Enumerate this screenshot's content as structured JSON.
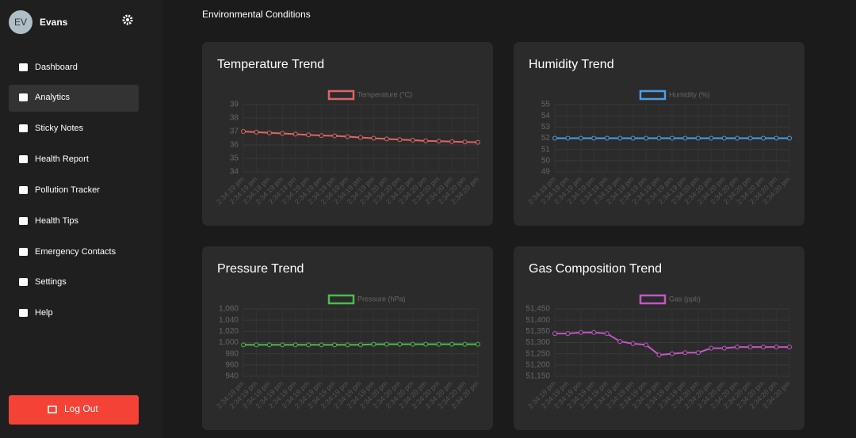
{
  "sidebar": {
    "user": {
      "initials": "EV",
      "name": "Evans"
    },
    "menu": [
      "Dashboard",
      "Analytics",
      "Sticky Notes",
      "Health Report",
      "Pollution Tracker",
      "Health Tips",
      "Emergency Contacts",
      "Settings",
      "Help"
    ],
    "active": "Analytics",
    "logout": "Log Out"
  },
  "header": {
    "title": "Environmental Conditions"
  },
  "chart_data": [
    {
      "type": "line",
      "title": "Temperature Trend",
      "legend": "top",
      "categories": [
        "2:34:19 pm",
        "2:34:19 pm",
        "2:34:19 pm",
        "2:34:19 pm",
        "2:34:19 pm",
        "2:34:19 pm",
        "2:34:19 pm",
        "2:34:19 pm",
        "2:34:19 pm",
        "2:34:19 pm",
        "2:34:19 pm",
        "2:34:20 pm",
        "2:34:20 pm",
        "2:34:20 pm",
        "2:34:20 pm",
        "2:34:20 pm",
        "2:34:20 pm",
        "2:34:20 pm",
        "2:34:20 pm"
      ],
      "series": [
        {
          "name": "Temperature (°C)",
          "color": "#e06464",
          "values": [
            37.0,
            36.95,
            36.9,
            36.85,
            36.8,
            36.75,
            36.7,
            36.68,
            36.62,
            36.55,
            36.5,
            36.45,
            36.4,
            36.35,
            36.3,
            36.28,
            36.25,
            36.22,
            36.2
          ]
        }
      ],
      "ylim": [
        34,
        39
      ],
      "yticks": [
        34,
        35,
        36,
        37,
        38,
        39
      ],
      "grid": true
    },
    {
      "type": "line",
      "title": "Humidity Trend",
      "legend": "top",
      "categories": [
        "2:34:19 pm",
        "2:34:19 pm",
        "2:34:19 pm",
        "2:34:19 pm",
        "2:34:19 pm",
        "2:34:19 pm",
        "2:34:19 pm",
        "2:34:19 pm",
        "2:34:19 pm",
        "2:34:19 pm",
        "2:34:19 pm",
        "2:34:20 pm",
        "2:34:20 pm",
        "2:34:20 pm",
        "2:34:20 pm",
        "2:34:20 pm",
        "2:34:20 pm",
        "2:34:20 pm",
        "2:34:20 pm"
      ],
      "series": [
        {
          "name": "Humidity (%)",
          "color": "#4a9fe8",
          "values": [
            52,
            52,
            52,
            52,
            52,
            52,
            52,
            52,
            52,
            52,
            52,
            52,
            52,
            52,
            52,
            52,
            52,
            52,
            52
          ]
        }
      ],
      "ylim": [
        49,
        55
      ],
      "yticks": [
        49,
        50,
        51,
        52,
        53,
        54,
        55
      ],
      "grid": true
    },
    {
      "type": "line",
      "title": "Pressure Trend",
      "legend": "top",
      "categories": [
        "2:34:19 pm",
        "2:34:19 pm",
        "2:34:19 pm",
        "2:34:19 pm",
        "2:34:19 pm",
        "2:34:19 pm",
        "2:34:19 pm",
        "2:34:19 pm",
        "2:34:19 pm",
        "2:34:19 pm",
        "2:34:19 pm",
        "2:34:20 pm",
        "2:34:20 pm",
        "2:34:20 pm",
        "2:34:20 pm",
        "2:34:20 pm",
        "2:34:20 pm",
        "2:34:20 pm",
        "2:34:20 pm"
      ],
      "series": [
        {
          "name": "Pressure (hPa)",
          "color": "#4cbb4c",
          "values": [
            996,
            996,
            996,
            996,
            996,
            996,
            996,
            996,
            996,
            996,
            997,
            997,
            997,
            997,
            997,
            997,
            997,
            997,
            997
          ]
        }
      ],
      "ylim": [
        940,
        1060
      ],
      "yticks": [
        940,
        960,
        980,
        {
          "value": 1000,
          "label": "1,000"
        },
        {
          "value": 1020,
          "label": "1,020"
        },
        {
          "value": 1040,
          "label": "1,040"
        },
        {
          "value": 1060,
          "label": "1,060"
        }
      ],
      "grid": true
    },
    {
      "type": "line",
      "title": "Gas Composition Trend",
      "legend": "top",
      "categories": [
        "2:34:19 pm",
        "2:34:19 pm",
        "2:34:19 pm",
        "2:34:19 pm",
        "2:34:19 pm",
        "2:34:19 pm",
        "2:34:19 pm",
        "2:34:19 pm",
        "2:34:19 pm",
        "2:34:19 pm",
        "2:34:19 pm",
        "2:34:20 pm",
        "2:34:20 pm",
        "2:34:20 pm",
        "2:34:20 pm",
        "2:34:20 pm",
        "2:34:20 pm",
        "2:34:20 pm",
        "2:34:20 pm"
      ],
      "series": [
        {
          "name": "Gas (ppb)",
          "color": "#c456c4",
          "values": [
            51340,
            51340,
            51345,
            51345,
            51340,
            51305,
            51295,
            51290,
            51245,
            51250,
            51255,
            51255,
            51275,
            51275,
            51280,
            51280,
            51280,
            51280,
            51280
          ]
        }
      ],
      "ylim": [
        51150,
        51450
      ],
      "yticks": [
        {
          "value": 51150,
          "label": "51,150"
        },
        {
          "value": 51200,
          "label": "51,200"
        },
        {
          "value": 51250,
          "label": "51,250"
        },
        {
          "value": 51300,
          "label": "51,300"
        },
        {
          "value": 51350,
          "label": "51,350"
        },
        {
          "value": 51400,
          "label": "51,400"
        },
        {
          "value": 51450,
          "label": "51,450"
        }
      ],
      "grid": true
    }
  ]
}
